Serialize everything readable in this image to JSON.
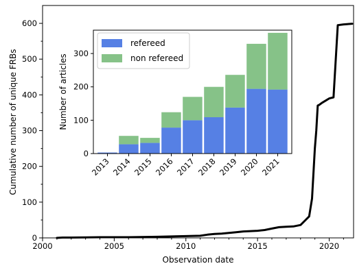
{
  "chart_data": [
    {
      "type": "line",
      "xlabel": "Observation date",
      "ylabel": "Cumulative number of unique FRBs",
      "xlim": [
        2000,
        2021.7
      ],
      "ylim": [
        0,
        650
      ],
      "xticks": [
        2000,
        2005,
        2010,
        2015,
        2020
      ],
      "yticks": [
        0,
        100,
        200,
        300,
        400,
        500,
        600
      ],
      "color": "#000000",
      "x": [
        2001.0,
        2001.4,
        2002,
        2004,
        2006,
        2008,
        2010,
        2011,
        2011.5,
        2012,
        2012.5,
        2013,
        2013.5,
        2014,
        2014.5,
        2015,
        2015.5,
        2016,
        2016.5,
        2017,
        2017.5,
        2018,
        2018.3,
        2018.6,
        2018.8,
        2019.0,
        2019.1,
        2019.2,
        2019.3,
        2019.5,
        2019.8,
        2020.0,
        2020.3,
        2020.6,
        2021.0,
        2021.3,
        2021.6
      ],
      "y": [
        0,
        1,
        1,
        2,
        2,
        3,
        5,
        6,
        9,
        11,
        12,
        14,
        16,
        18,
        19,
        20,
        22,
        26,
        30,
        31,
        32,
        36,
        48,
        60,
        110,
        250,
        300,
        370,
        372,
        378,
        385,
        390,
        393,
        595,
        597,
        598,
        599
      ]
    },
    {
      "type": "bar",
      "stacked": true,
      "ylabel": "Number of articles",
      "ylim": [
        0,
        370
      ],
      "yticks": [
        0,
        100,
        200,
        300
      ],
      "categories": [
        "2013",
        "2014",
        "2015",
        "2016",
        "2017",
        "2018",
        "2019",
        "2020",
        "2021"
      ],
      "series": [
        {
          "name": "refereed",
          "color": "#5680e4",
          "values": [
            3,
            28,
            32,
            78,
            100,
            109,
            138,
            194,
            192
          ]
        },
        {
          "name": "non refereed",
          "color": "#86c288",
          "values": [
            0,
            25,
            15,
            46,
            70,
            91,
            98,
            135,
            170
          ]
        }
      ],
      "legend": "top-left"
    }
  ]
}
